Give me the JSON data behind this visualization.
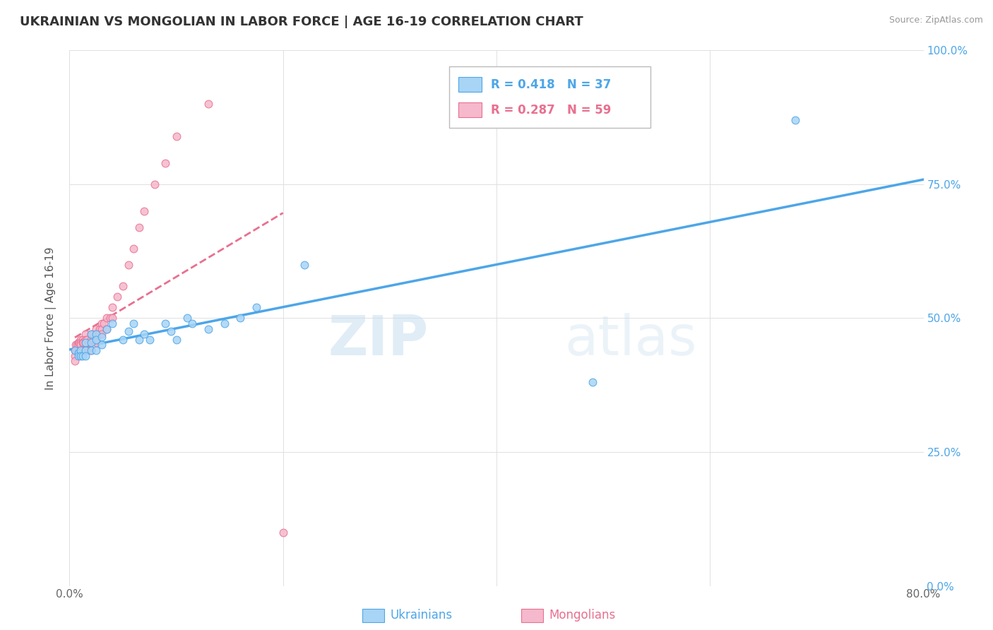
{
  "title": "UKRAINIAN VS MONGOLIAN IN LABOR FORCE | AGE 16-19 CORRELATION CHART",
  "source": "Source: ZipAtlas.com",
  "ylabel": "In Labor Force | Age 16-19",
  "xlim": [
    0.0,
    0.8
  ],
  "ylim": [
    0.0,
    1.0
  ],
  "xtick_positions": [
    0.0,
    0.2,
    0.4,
    0.6,
    0.8
  ],
  "xtick_labels": [
    "0.0%",
    "",
    "",
    "",
    "80.0%"
  ],
  "ytick_positions": [
    0.0,
    0.25,
    0.5,
    0.75,
    1.0
  ],
  "ytick_labels_right": [
    "0.0%",
    "25.0%",
    "50.0%",
    "75.0%",
    "100.0%"
  ],
  "legend_R_ukrainian": "R = 0.418",
  "legend_N_ukrainian": "N = 37",
  "legend_R_mongolian": "R = 0.287",
  "legend_N_mongolian": "N = 59",
  "ukrainian_color": "#a8d4f5",
  "mongolian_color": "#f5b8cc",
  "trendline_ukrainian_color": "#4da6e8",
  "trendline_mongolian_color": "#e87090",
  "watermark_zip": "ZIP",
  "watermark_atlas": "atlas",
  "ukrainian_x": [
    0.005,
    0.008,
    0.008,
    0.01,
    0.01,
    0.012,
    0.015,
    0.015,
    0.015,
    0.02,
    0.02,
    0.02,
    0.025,
    0.025,
    0.025,
    0.03,
    0.03,
    0.035,
    0.04,
    0.05,
    0.055,
    0.06,
    0.065,
    0.07,
    0.075,
    0.09,
    0.095,
    0.1,
    0.11,
    0.115,
    0.13,
    0.145,
    0.16,
    0.175,
    0.22,
    0.49,
    0.68
  ],
  "ukrainian_y": [
    0.44,
    0.435,
    0.43,
    0.44,
    0.43,
    0.43,
    0.455,
    0.44,
    0.43,
    0.47,
    0.455,
    0.44,
    0.47,
    0.46,
    0.44,
    0.465,
    0.45,
    0.48,
    0.49,
    0.46,
    0.475,
    0.49,
    0.46,
    0.47,
    0.46,
    0.49,
    0.475,
    0.46,
    0.5,
    0.49,
    0.48,
    0.49,
    0.5,
    0.52,
    0.6,
    0.38,
    0.87
  ],
  "mongolian_x": [
    0.005,
    0.005,
    0.005,
    0.006,
    0.006,
    0.007,
    0.007,
    0.008,
    0.008,
    0.008,
    0.009,
    0.009,
    0.01,
    0.01,
    0.01,
    0.01,
    0.012,
    0.012,
    0.012,
    0.013,
    0.013,
    0.015,
    0.015,
    0.015,
    0.015,
    0.016,
    0.018,
    0.018,
    0.02,
    0.02,
    0.02,
    0.022,
    0.022,
    0.025,
    0.025,
    0.025,
    0.025,
    0.028,
    0.028,
    0.03,
    0.03,
    0.03,
    0.032,
    0.035,
    0.035,
    0.038,
    0.04,
    0.04,
    0.045,
    0.05,
    0.055,
    0.06,
    0.065,
    0.07,
    0.08,
    0.09,
    0.1,
    0.13,
    0.2
  ],
  "mongolian_y": [
    0.44,
    0.43,
    0.42,
    0.45,
    0.44,
    0.45,
    0.44,
    0.455,
    0.45,
    0.44,
    0.455,
    0.44,
    0.46,
    0.455,
    0.45,
    0.44,
    0.46,
    0.455,
    0.44,
    0.455,
    0.44,
    0.47,
    0.46,
    0.455,
    0.44,
    0.46,
    0.455,
    0.44,
    0.47,
    0.46,
    0.44,
    0.47,
    0.46,
    0.48,
    0.47,
    0.465,
    0.455,
    0.48,
    0.47,
    0.49,
    0.48,
    0.47,
    0.49,
    0.5,
    0.48,
    0.5,
    0.52,
    0.5,
    0.54,
    0.56,
    0.6,
    0.63,
    0.67,
    0.7,
    0.75,
    0.79,
    0.84,
    0.9,
    0.1
  ]
}
